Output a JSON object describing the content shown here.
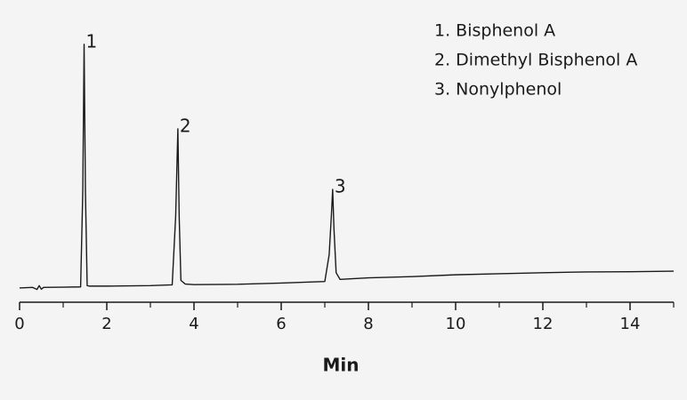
{
  "chart_data": {
    "type": "line",
    "xlabel": "Min",
    "x": [
      0,
      0.3,
      0.4,
      0.45,
      0.5,
      0.55,
      1.0,
      1.4,
      1.45,
      1.48,
      1.51,
      1.55,
      1.6,
      2,
      3,
      3.5,
      3.58,
      3.63,
      3.66,
      3.7,
      3.8,
      4,
      5,
      6,
      7,
      7.1,
      7.15,
      7.18,
      7.21,
      7.26,
      7.35,
      8,
      9,
      10,
      11,
      12,
      13,
      14,
      15
    ],
    "values": [
      2.1,
      2.3,
      1.5,
      3,
      1.6,
      2.3,
      2.4,
      2.5,
      40,
      96.6,
      40,
      3,
      2.8,
      2.8,
      3,
      3.3,
      30,
      63.8,
      30,
      5,
      3.6,
      3.4,
      3.5,
      4,
      4.6,
      15,
      30,
      40.3,
      25,
      8,
      5.4,
      6,
      6.5,
      7.2,
      7.6,
      8,
      8.3,
      8.4,
      8.6
    ],
    "color": "#1a1a1a",
    "xlim": [
      0,
      15
    ],
    "ylim": [
      0,
      100
    ],
    "xticks": [
      0,
      2,
      4,
      6,
      8,
      10,
      12,
      14
    ],
    "xticks_minor": [
      1,
      3,
      5,
      7,
      9,
      11,
      13,
      15
    ],
    "annotations": [
      {
        "text": "1",
        "x": 1.48,
        "y": 96.6
      },
      {
        "text": "2",
        "x": 3.63,
        "y": 63.8
      },
      {
        "text": "3",
        "x": 7.18,
        "y": 40.3
      }
    ],
    "legend_items": [
      "1. Bisphenol A",
      "2. Dimethyl Bisphenol A",
      "3. Nonylphenol"
    ]
  }
}
